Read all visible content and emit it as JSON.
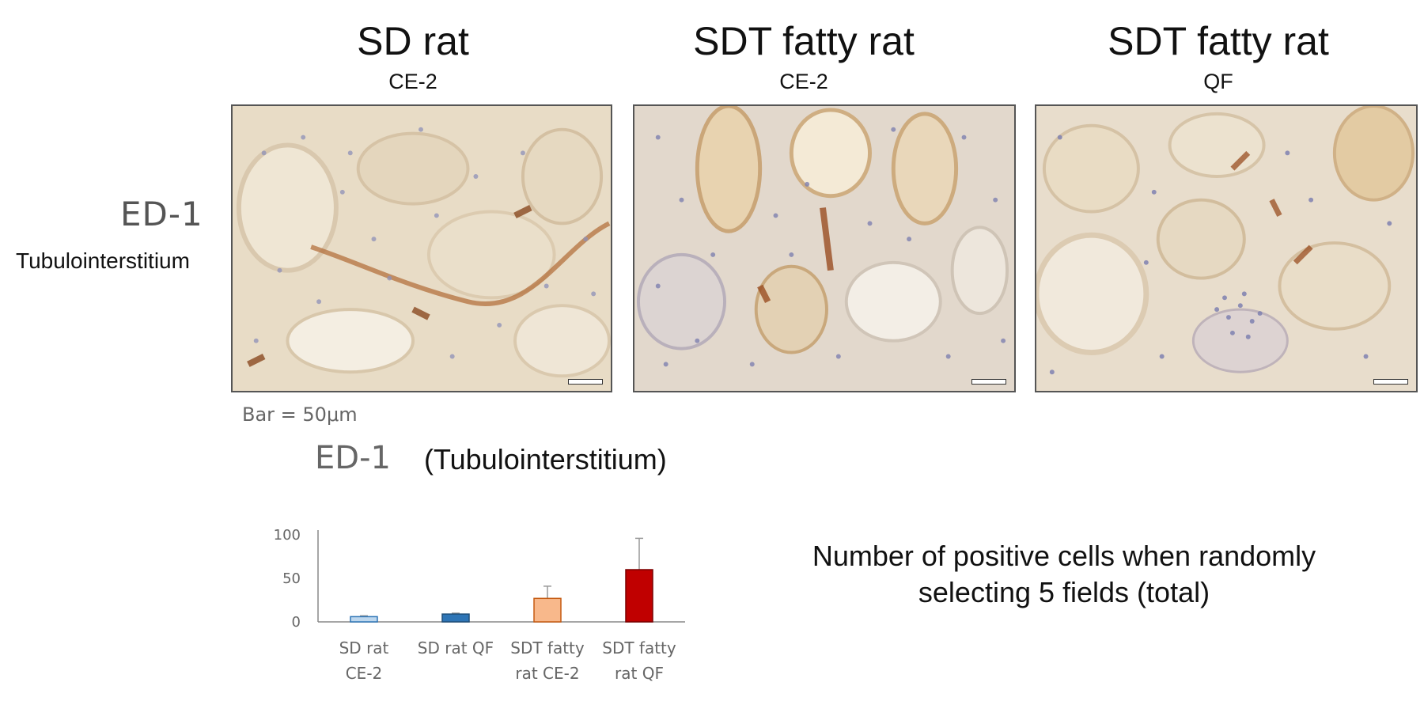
{
  "panels": [
    {
      "title": "SD rat",
      "subtitle": "CE-2"
    },
    {
      "title": "SDT fatty rat",
      "subtitle": "CE-2"
    },
    {
      "title": "SDT fatty rat",
      "subtitle": "QF"
    }
  ],
  "row": {
    "stain": "ED-1",
    "region": "Tubulointerstitium"
  },
  "scale_note": "Bar = 50μm",
  "chart_heading": {
    "stain": "ED-1",
    "region": "(Tubulointerstitium)"
  },
  "caption": {
    "line1": "Number of positive cells when randomly",
    "line2": "selecting 5 fields (total)"
  },
  "colors": {
    "sd_ce2": "#bdd7ee",
    "sd_qf": "#2e75b6",
    "sdt_ce2": "#f8b88b",
    "sdt_qf": "#c00000",
    "tissue": "#e9ddc9",
    "nuclei": "#8e90b8",
    "dab": "#a0522d"
  },
  "chart_data": {
    "type": "bar",
    "categories": [
      [
        "SD rat",
        "CE-2"
      ],
      [
        "SD rat QF"
      ],
      [
        "SDT fatty",
        "rat CE-2"
      ],
      [
        "SDT fatty",
        "rat QF"
      ]
    ],
    "values": [
      6,
      9,
      27,
      60
    ],
    "errors": [
      1,
      1,
      14,
      36
    ],
    "bar_colors": [
      "#bdd7ee",
      "#2e75b6",
      "#f8b88b",
      "#c00000"
    ],
    "bar_strokes": [
      "#2e75b6",
      "#1f4e79",
      "#c55a11",
      "#7b0000"
    ],
    "yticks": [
      0,
      50,
      100
    ],
    "ylim": [
      0,
      100
    ],
    "xlabel": "",
    "ylabel": ""
  }
}
